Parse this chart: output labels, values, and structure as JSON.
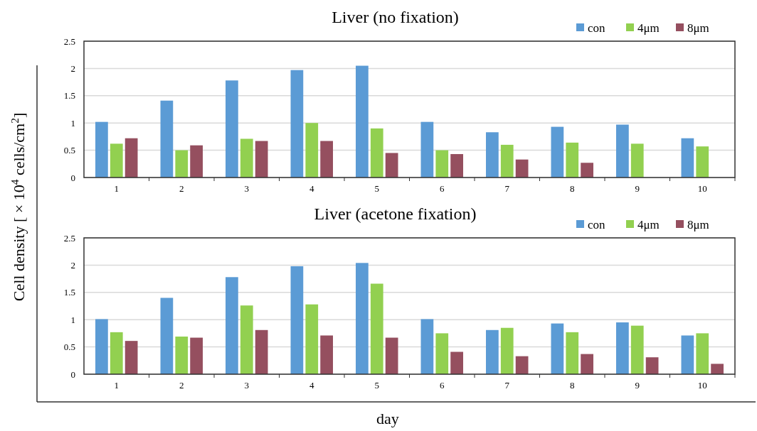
{
  "chart_data": [
    {
      "type": "bar",
      "title": "Liver (no fixation)",
      "ylabel": "Cell density [ × 10$^{4}$ cells/cm$^{2}$]",
      "categories": [
        "1",
        "2",
        "3",
        "4",
        "5",
        "6",
        "7",
        "8",
        "9",
        "10"
      ],
      "ylim": [
        0,
        2.5
      ],
      "yticks": [
        0,
        0.5,
        1,
        1.5,
        2,
        2.5
      ],
      "grid": "y",
      "legend": "top right",
      "series": [
        {
          "name": "con",
          "color": "#5b9bd5",
          "values": [
            1.02,
            1.41,
            1.78,
            1.97,
            2.05,
            1.02,
            0.83,
            0.93,
            0.97,
            0.72
          ]
        },
        {
          "name": "4μm",
          "color": "#92d050",
          "values": [
            0.62,
            0.5,
            0.71,
            1.0,
            0.9,
            0.5,
            0.6,
            0.64,
            0.62,
            0.57
          ]
        },
        {
          "name": "8μm",
          "color": "#954f5f",
          "values": [
            0.72,
            0.59,
            0.67,
            0.67,
            0.45,
            0.43,
            0.33,
            0.27,
            null,
            null
          ]
        }
      ]
    },
    {
      "type": "bar",
      "title": "Liver (acetone fixation)",
      "xlabel": "day",
      "categories": [
        "1",
        "2",
        "3",
        "4",
        "5",
        "6",
        "7",
        "8",
        "9",
        "10"
      ],
      "ylim": [
        0,
        2.5
      ],
      "yticks": [
        0,
        0.5,
        1,
        1.5,
        2,
        2.5
      ],
      "grid": "y",
      "legend": "top right",
      "series": [
        {
          "name": "con",
          "color": "#5b9bd5",
          "values": [
            1.01,
            1.4,
            1.78,
            1.98,
            2.04,
            1.01,
            0.81,
            0.93,
            0.95,
            0.71
          ]
        },
        {
          "name": "4μm",
          "color": "#92d050",
          "values": [
            0.77,
            0.69,
            1.26,
            1.28,
            1.66,
            0.75,
            0.85,
            0.77,
            0.89,
            0.75
          ]
        },
        {
          "name": "8μm",
          "color": "#954f5f",
          "values": [
            0.61,
            0.67,
            0.81,
            0.71,
            0.67,
            0.41,
            0.33,
            0.37,
            0.31,
            0.19
          ]
        }
      ]
    }
  ]
}
